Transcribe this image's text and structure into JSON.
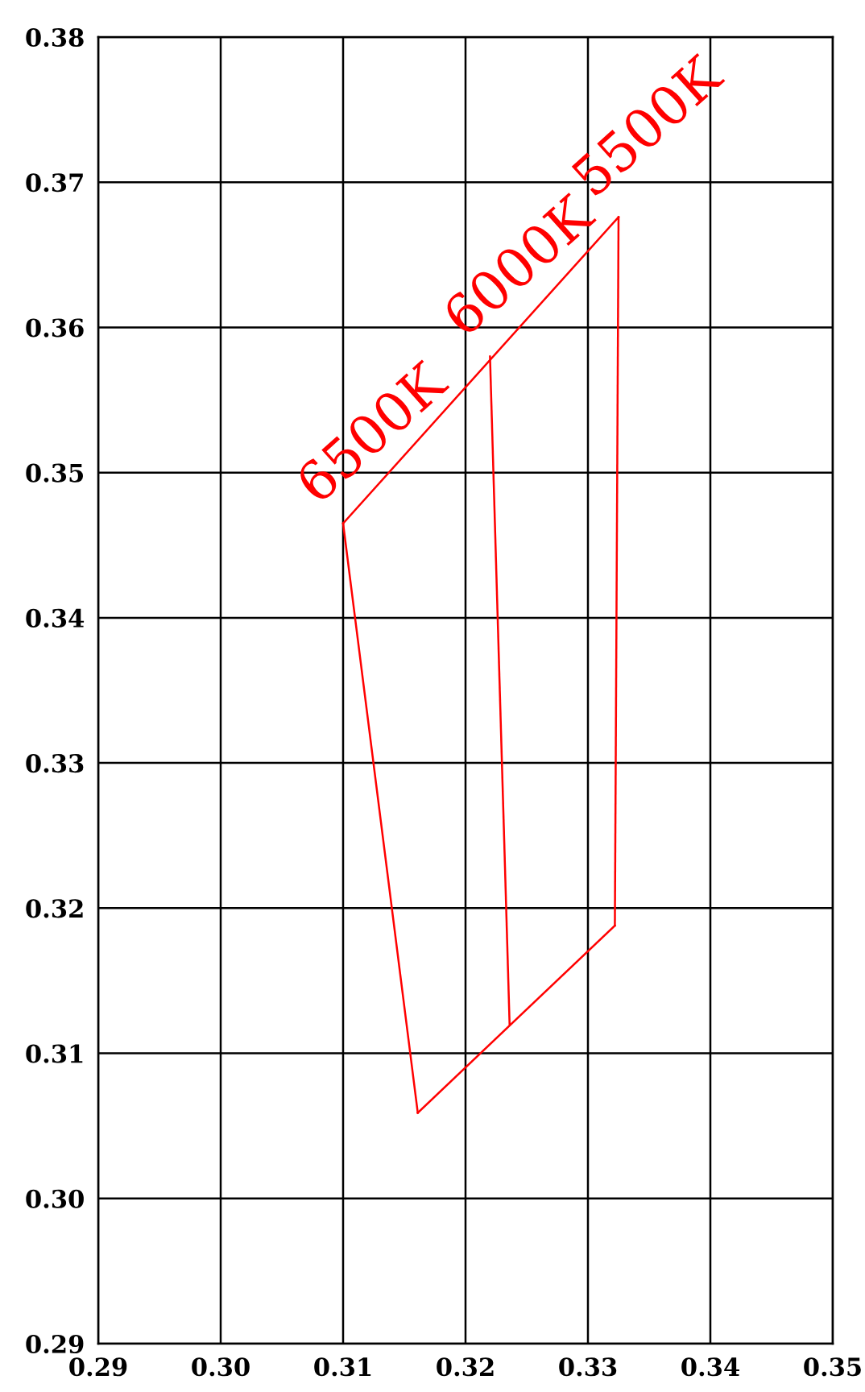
{
  "chart_data": {
    "type": "line",
    "series": [
      {
        "color": "#ff0000",
        "x": [
          0.31,
          0.3325
        ],
        "values": [
          0.3465,
          0.3676
        ]
      },
      {
        "color": "#ff0000",
        "x": [
          0.3322,
          0.3325
        ],
        "values": [
          0.3188,
          0.3676
        ]
      },
      {
        "color": "#ff0000",
        "x": [
          0.3161,
          0.3322
        ],
        "values": [
          0.3059,
          0.3188
        ]
      },
      {
        "color": "#ff0000",
        "x": [
          0.31,
          0.3161
        ],
        "values": [
          0.3465,
          0.3059
        ]
      },
      {
        "color": "#ff0000",
        "x": [
          0.322,
          0.3236
        ],
        "values": [
          0.358,
          0.312
        ]
      }
    ],
    "annotations": [
      {
        "text": "6500K",
        "x": 0.31,
        "y": 0.3465
      },
      {
        "text": "6000K",
        "x": 0.322,
        "y": 0.358
      },
      {
        "text": "5500K",
        "x": 0.3325,
        "y": 0.3676
      }
    ],
    "xlim": [
      0.29,
      0.35
    ],
    "xticks": [
      {
        "value": 0.29,
        "label": "0.29"
      },
      {
        "value": 0.3,
        "label": "0.30"
      },
      {
        "value": 0.31,
        "label": "0.31"
      },
      {
        "value": 0.32,
        "label": "0.32"
      },
      {
        "value": 0.33,
        "label": "0.33"
      },
      {
        "value": 0.34,
        "label": "0.34"
      },
      {
        "value": 0.35,
        "label": "0.35"
      }
    ],
    "ylim": [
      0.29,
      0.38
    ],
    "yticks": [
      {
        "value": 0.29,
        "label": "0.29"
      },
      {
        "value": 0.3,
        "label": "0.30"
      },
      {
        "value": 0.31,
        "label": "0.31"
      },
      {
        "value": 0.32,
        "label": "0.32"
      },
      {
        "value": 0.33,
        "label": "0.33"
      },
      {
        "value": 0.34,
        "label": "0.34"
      },
      {
        "value": 0.35,
        "label": "0.35"
      },
      {
        "value": 0.36,
        "label": "0.36"
      },
      {
        "value": 0.37,
        "label": "0.37"
      },
      {
        "value": 0.38,
        "label": "0.38"
      }
    ],
    "grid": true,
    "marker": "none",
    "line_style": "solid"
  }
}
